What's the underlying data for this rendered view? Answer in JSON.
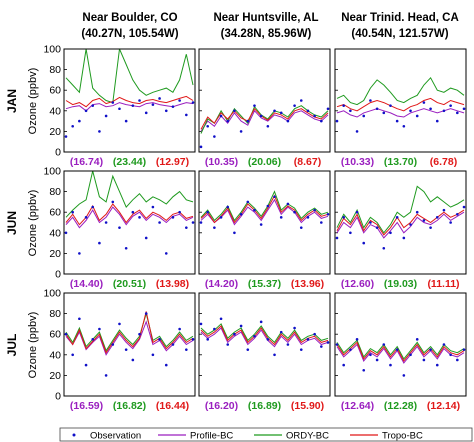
{
  "chart_data": {
    "type": "line",
    "ylim": [
      0,
      100
    ],
    "yticks": [
      0,
      20,
      40,
      60,
      80,
      100
    ],
    "colors": {
      "Observation": "#1010c8",
      "Profile-BC": "#9a1fbf",
      "ORDY-BC": "#1f9a1f",
      "Tropo-BC": "#e01818"
    },
    "legend": {
      "placement": "bottom",
      "entries": [
        "Observation",
        "Profile-BC",
        "ORDY-BC",
        "Tropo-BC"
      ]
    },
    "columns": [
      {
        "name": "Near Boulder, CO",
        "coords": "(40.27N, 105.54W)"
      },
      {
        "name": "Near Huntsville, AL",
        "coords": "(34.28N, 85.96W)"
      },
      {
        "name": "Near Trinid. Head, CA",
        "coords": "(40.54N, 121.57W)"
      }
    ],
    "rows": [
      {
        "month": "JAN",
        "ylabel": "Ozone (ppbv)"
      },
      {
        "month": "JUN",
        "ylabel": "Ozone (ppbv)"
      },
      {
        "month": "JUL",
        "ylabel": "Ozone (ppbv)"
      }
    ],
    "panels": [
      {
        "row": 0,
        "col": 0,
        "stats": [
          "(16.74)",
          "(23.44)",
          "(12.97)"
        ],
        "obs": [
          15,
          25,
          30,
          40,
          45,
          20,
          35,
          48,
          42,
          30,
          45,
          50,
          38,
          46,
          52,
          40,
          44,
          50,
          36,
          48
        ],
        "profile": [
          42,
          44,
          45,
          40,
          46,
          47,
          44,
          45,
          48,
          46,
          45,
          44,
          47,
          48,
          46,
          45,
          44,
          46,
          48,
          47
        ],
        "ordy": [
          72,
          65,
          58,
          100,
          62,
          55,
          50,
          48,
          100,
          85,
          70,
          60,
          55,
          58,
          60,
          62,
          58,
          70,
          95,
          65
        ],
        "tropo": [
          50,
          46,
          48,
          44,
          50,
          52,
          47,
          49,
          53,
          50,
          48,
          47,
          50,
          51,
          49,
          48,
          50,
          52,
          54,
          50
        ]
      },
      {
        "row": 0,
        "col": 1,
        "stats": [
          "(10.35)",
          "(20.06)",
          "(8.67)"
        ],
        "obs": [
          5,
          25,
          15,
          35,
          30,
          40,
          20,
          30,
          45,
          35,
          25,
          40,
          38,
          30,
          45,
          50,
          40,
          35,
          30,
          42
        ],
        "profile": [
          20,
          30,
          25,
          35,
          28,
          38,
          30,
          26,
          40,
          33,
          30,
          36,
          34,
          30,
          38,
          40,
          36,
          32,
          30,
          36
        ],
        "ordy": [
          18,
          32,
          28,
          40,
          30,
          42,
          35,
          28,
          44,
          36,
          32,
          40,
          38,
          34,
          42,
          45,
          40,
          36,
          34,
          40
        ],
        "tropo": [
          22,
          34,
          28,
          38,
          32,
          40,
          33,
          30,
          42,
          35,
          31,
          38,
          36,
          32,
          40,
          42,
          38,
          34,
          32,
          38
        ]
      },
      {
        "row": 0,
        "col": 2,
        "stats": [
          "(10.33)",
          "(13.70)",
          "(6.78)"
        ],
        "obs": [
          30,
          45,
          40,
          20,
          35,
          50,
          42,
          38,
          45,
          30,
          25,
          40,
          35,
          48,
          42,
          30,
          40,
          45,
          38,
          42
        ],
        "profile": [
          38,
          40,
          36,
          34,
          38,
          40,
          42,
          40,
          38,
          35,
          34,
          38,
          40,
          42,
          40,
          38,
          40,
          42,
          40,
          38
        ],
        "ordy": [
          52,
          55,
          48,
          46,
          50,
          62,
          70,
          65,
          58,
          50,
          48,
          52,
          55,
          65,
          72,
          60,
          58,
          62,
          60,
          55
        ],
        "tropo": [
          44,
          46,
          42,
          40,
          44,
          48,
          50,
          48,
          45,
          42,
          40,
          44,
          46,
          50,
          52,
          48,
          46,
          50,
          48,
          46
        ]
      },
      {
        "row": 1,
        "col": 0,
        "stats": [
          "(14.40)",
          "(20.51)",
          "(13.98)"
        ],
        "obs": [
          40,
          60,
          20,
          55,
          65,
          30,
          50,
          70,
          45,
          25,
          60,
          55,
          35,
          65,
          50,
          20,
          55,
          60,
          45,
          50
        ],
        "profile": [
          48,
          55,
          45,
          52,
          62,
          50,
          55,
          65,
          58,
          48,
          56,
          60,
          52,
          58,
          55,
          50,
          56,
          58,
          52,
          55
        ],
        "ordy": [
          55,
          62,
          68,
          72,
          100,
          75,
          70,
          95,
          80,
          65,
          72,
          78,
          70,
          75,
          72,
          68,
          75,
          80,
          72,
          70
        ],
        "tropo": [
          50,
          58,
          48,
          55,
          66,
          52,
          58,
          68,
          60,
          50,
          58,
          62,
          54,
          60,
          57,
          52,
          58,
          60,
          54,
          56
        ]
      },
      {
        "row": 1,
        "col": 1,
        "stats": [
          "(14.20)",
          "(15.37)",
          "(13.96)"
        ],
        "obs": [
          50,
          60,
          45,
          55,
          65,
          40,
          58,
          70,
          62,
          48,
          66,
          75,
          55,
          68,
          60,
          45,
          55,
          62,
          50,
          58
        ],
        "profile": [
          52,
          58,
          50,
          55,
          62,
          48,
          56,
          65,
          60,
          52,
          62,
          72,
          58,
          65,
          60,
          50,
          56,
          60,
          54,
          56
        ],
        "ordy": [
          55,
          62,
          52,
          58,
          66,
          52,
          60,
          70,
          64,
          56,
          66,
          80,
          62,
          68,
          64,
          54,
          60,
          64,
          58,
          60
        ],
        "tropo": [
          54,
          60,
          50,
          56,
          64,
          50,
          58,
          68,
          62,
          54,
          64,
          76,
          60,
          66,
          62,
          52,
          58,
          62,
          56,
          58
        ]
      },
      {
        "row": 1,
        "col": 2,
        "stats": [
          "(12.60)",
          "(19.03)",
          "(11.11)"
        ],
        "obs": [
          35,
          55,
          40,
          60,
          30,
          50,
          45,
          25,
          40,
          55,
          35,
          48,
          60,
          52,
          45,
          55,
          62,
          50,
          58,
          65
        ],
        "profile": [
          40,
          50,
          45,
          55,
          40,
          48,
          45,
          35,
          42,
          50,
          40,
          46,
          55,
          50,
          48,
          52,
          58,
          52,
          56,
          60
        ],
        "ordy": [
          45,
          58,
          50,
          62,
          45,
          55,
          50,
          40,
          48,
          60,
          55,
          60,
          85,
          80,
          70,
          75,
          70,
          65,
          68,
          72
        ],
        "tropo": [
          42,
          54,
          48,
          58,
          42,
          52,
          48,
          38,
          45,
          55,
          45,
          50,
          58,
          54,
          50,
          55,
          60,
          55,
          58,
          62
        ]
      },
      {
        "row": 2,
        "col": 0,
        "stats": [
          "(16.59)",
          "(16.82)",
          "(16.44)"
        ],
        "obs": [
          60,
          40,
          75,
          30,
          55,
          65,
          20,
          50,
          70,
          45,
          35,
          60,
          80,
          40,
          55,
          30,
          50,
          65,
          45,
          55
        ],
        "profile": [
          58,
          50,
          62,
          45,
          52,
          58,
          40,
          50,
          60,
          52,
          46,
          55,
          72,
          50,
          54,
          44,
          50,
          58,
          50,
          54
        ],
        "ordy": [
          62,
          52,
          66,
          48,
          55,
          62,
          44,
          54,
          64,
          56,
          50,
          58,
          80,
          54,
          58,
          48,
          54,
          62,
          54,
          58
        ],
        "tropo": [
          60,
          50,
          64,
          46,
          53,
          60,
          42,
          52,
          62,
          54,
          48,
          56,
          82,
          52,
          56,
          46,
          52,
          60,
          52,
          56
        ]
      },
      {
        "row": 2,
        "col": 1,
        "stats": [
          "(16.20)",
          "(16.89)",
          "(15.90)"
        ],
        "obs": [
          70,
          55,
          65,
          75,
          50,
          60,
          68,
          45,
          58,
          72,
          55,
          40,
          62,
          50,
          66,
          45,
          55,
          60,
          48,
          52
        ],
        "profile": [
          62,
          56,
          60,
          66,
          52,
          58,
          62,
          50,
          56,
          64,
          54,
          48,
          58,
          52,
          60,
          50,
          54,
          56,
          50,
          52
        ],
        "ordy": [
          66,
          60,
          64,
          70,
          56,
          62,
          66,
          54,
          60,
          68,
          58,
          52,
          62,
          56,
          64,
          54,
          58,
          60,
          54,
          56
        ],
        "tropo": [
          64,
          58,
          62,
          68,
          54,
          60,
          64,
          52,
          58,
          66,
          56,
          50,
          60,
          54,
          62,
          52,
          56,
          58,
          52,
          54
        ]
      },
      {
        "row": 2,
        "col": 2,
        "stats": [
          "(12.64)",
          "(12.28)",
          "(12.14)"
        ],
        "obs": [
          50,
          30,
          45,
          55,
          25,
          40,
          35,
          50,
          30,
          45,
          20,
          40,
          55,
          35,
          45,
          30,
          50,
          40,
          35,
          45
        ],
        "profile": [
          48,
          38,
          44,
          50,
          34,
          42,
          38,
          46,
          36,
          44,
          32,
          40,
          48,
          38,
          44,
          36,
          46,
          40,
          38,
          42
        ],
        "ordy": [
          52,
          42,
          48,
          54,
          38,
          46,
          42,
          50,
          40,
          48,
          36,
          44,
          52,
          42,
          48,
          40,
          50,
          44,
          42,
          46
        ],
        "tropo": [
          50,
          40,
          46,
          52,
          36,
          44,
          40,
          48,
          38,
          46,
          34,
          42,
          50,
          40,
          46,
          38,
          48,
          42,
          40,
          44
        ]
      }
    ]
  }
}
